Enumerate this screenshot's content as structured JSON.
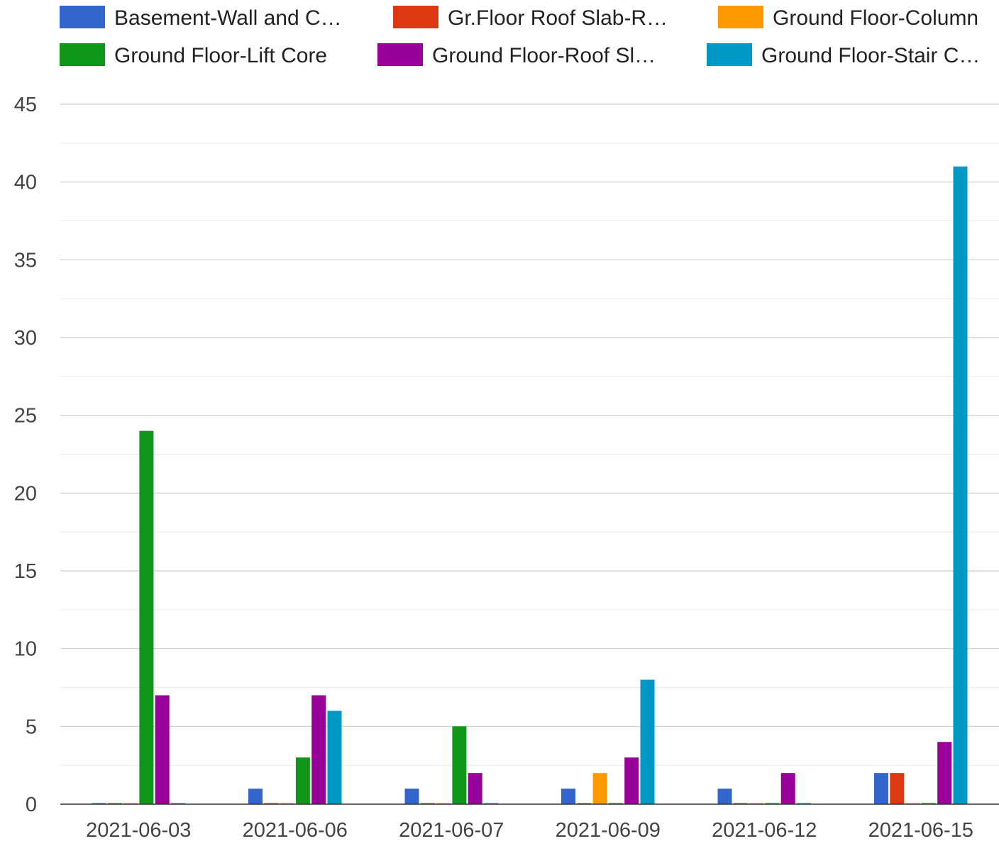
{
  "chart_data": {
    "type": "bar",
    "categories": [
      "2021-06-03",
      "2021-06-06",
      "2021-06-07",
      "2021-06-09",
      "2021-06-12",
      "2021-06-15"
    ],
    "series": [
      {
        "name": "Basement-Wall and C…",
        "color": "#3366cc",
        "values": [
          0,
          1,
          1,
          1,
          1,
          2
        ]
      },
      {
        "name": "Gr.Floor Roof Slab-R…",
        "color": "#dc3912",
        "values": [
          0,
          0,
          0,
          0,
          0,
          2
        ]
      },
      {
        "name": "Ground Floor-Column",
        "color": "#ff9900",
        "values": [
          0,
          0,
          0,
          2,
          0,
          0
        ]
      },
      {
        "name": "Ground Floor-Lift Core",
        "color": "#109618",
        "values": [
          24,
          3,
          5,
          0,
          0,
          0
        ]
      },
      {
        "name": "Ground Floor-Roof Sl…",
        "color": "#990099",
        "values": [
          7,
          7,
          2,
          3,
          2,
          4
        ]
      },
      {
        "name": "Ground Floor-Stair C…",
        "color": "#0099c6",
        "values": [
          0,
          6,
          0,
          8,
          0,
          41
        ]
      }
    ],
    "yticks": [
      "0",
      "5",
      "10",
      "15",
      "20",
      "25",
      "30",
      "35",
      "40",
      "45"
    ],
    "ylim": [
      0,
      45
    ],
    "grid": true,
    "minor_grid": true,
    "legend_position": "top"
  }
}
